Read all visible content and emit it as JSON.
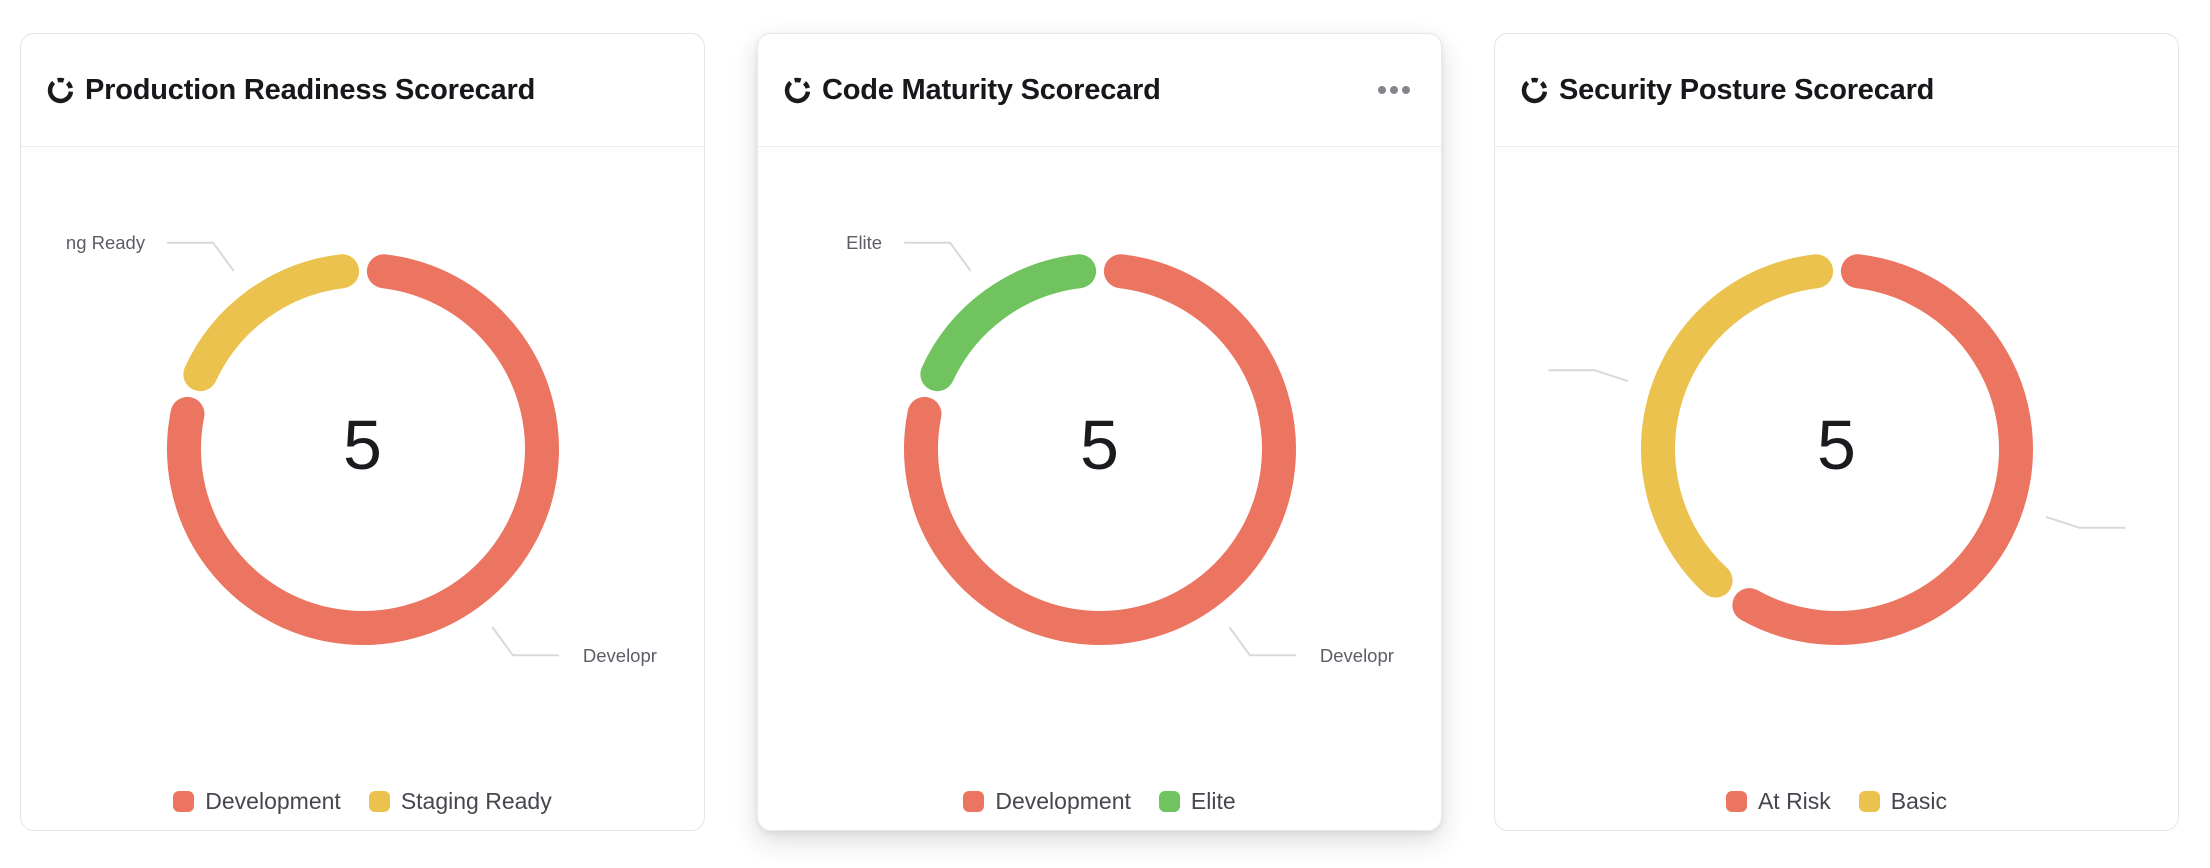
{
  "page": {
    "background": "#ffffff"
  },
  "colors": {
    "card_border": "#e3e3e7",
    "divider": "#ececef",
    "title_text": "#17171c",
    "total_text": "#1b1b1f",
    "legend_text": "#46464e",
    "callout_text": "#5d5d66",
    "callout_line": "#d9d9dd",
    "menu_dots": "#85858c",
    "series_red": "#eb7560",
    "series_yellow": "#eac24d",
    "series_green": "#71c360"
  },
  "chart_data": [
    {
      "type": "pie",
      "subtype": "donut",
      "title": "Production Readiness Scorecard",
      "categories": [
        "Development",
        "Staging Ready"
      ],
      "values": [
        4,
        1
      ],
      "colors": [
        "#eb7560",
        "#eac24d"
      ],
      "center_label": "5",
      "legend_position": "bottom"
    },
    {
      "type": "pie",
      "subtype": "donut",
      "title": "Code Maturity Scorecard",
      "categories": [
        "Development",
        "Elite"
      ],
      "values": [
        4,
        1
      ],
      "colors": [
        "#eb7560",
        "#71c360"
      ],
      "center_label": "5",
      "legend_position": "bottom"
    },
    {
      "type": "pie",
      "subtype": "donut",
      "title": "Security Posture Scorecard",
      "categories": [
        "At Risk",
        "Basic"
      ],
      "values": [
        3,
        2
      ],
      "colors": [
        "#eb7560",
        "#eac24d"
      ],
      "center_label": "5",
      "legend_position": "bottom"
    }
  ],
  "cards": [
    {
      "title": "Production Readiness Scorecard",
      "header_icon": "circle-dashed-icon",
      "menu_icon": null,
      "total": "5",
      "elevated": false,
      "segments": [
        {
          "label": "Development",
          "value": 4,
          "color": "#eb7560",
          "callout_text": "Developr"
        },
        {
          "label": "Staging Ready",
          "value": 1,
          "color": "#eac24d",
          "callout_text": "ng Ready"
        }
      ]
    },
    {
      "title": "Code Maturity Scorecard",
      "header_icon": "circle-dashed-icon",
      "menu_icon": "ellipsis-icon",
      "total": "5",
      "elevated": true,
      "segments": [
        {
          "label": "Development",
          "value": 4,
          "color": "#eb7560",
          "callout_text": "Developr"
        },
        {
          "label": "Elite",
          "value": 1,
          "color": "#71c360",
          "callout_text": "Elite"
        }
      ]
    },
    {
      "title": "Security Posture Scorecard",
      "header_icon": "circle-dashed-icon",
      "menu_icon": null,
      "total": "5",
      "elevated": false,
      "segments": [
        {
          "label": "At Risk",
          "value": 3,
          "color": "#eb7560",
          "callout_text": ""
        },
        {
          "label": "Basic",
          "value": 2,
          "color": "#eac24d",
          "callout_text": ""
        }
      ]
    }
  ]
}
